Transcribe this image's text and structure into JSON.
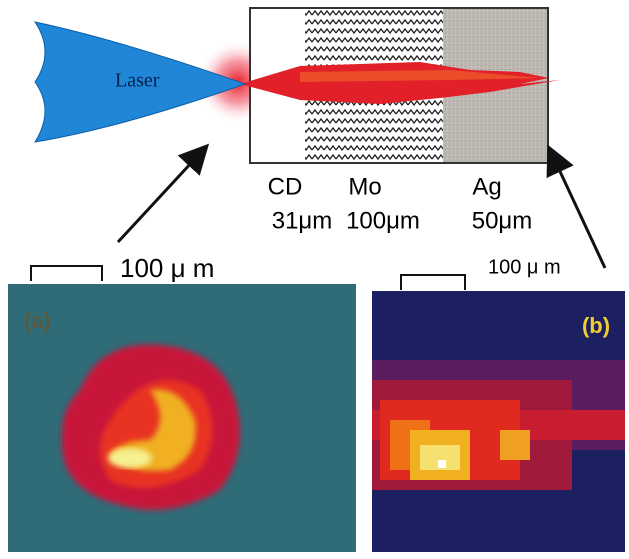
{
  "diagram": {
    "laser": "Laser",
    "layers": [
      {
        "name": "CD",
        "thickness": "31μm"
      },
      {
        "name": "Mo",
        "thickness": "100μm"
      },
      {
        "name": "Ag",
        "thickness": "50μm"
      }
    ],
    "panel_a": {
      "label": "(a)",
      "scale": "100 μ m"
    },
    "panel_b": {
      "label": "(b)",
      "scale": "100 μ m"
    }
  }
}
